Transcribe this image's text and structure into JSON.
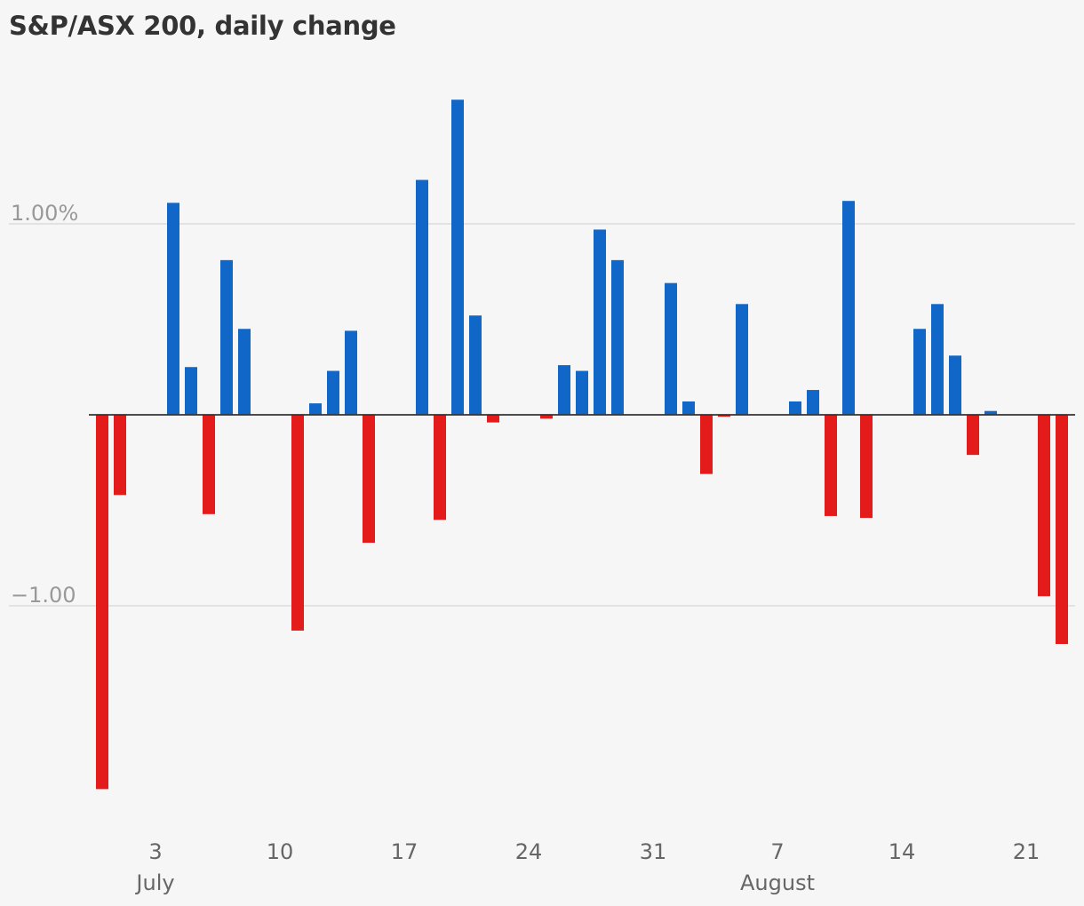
{
  "chart_data": {
    "type": "bar",
    "title": "S&P/ASX 200, daily change",
    "xlabel": "",
    "ylabel": "",
    "unit": "%",
    "ylim": [
      -1.9,
      1.65
    ],
    "y_ticks": [
      {
        "value": 1.0,
        "label": "1.00%"
      },
      {
        "value": -1.0,
        "label": "−1.00"
      }
    ],
    "grid": true,
    "legend": "none",
    "x_start": "2023-06-30",
    "x_ticks": [
      {
        "day": 3,
        "label": "3"
      },
      {
        "day": 10,
        "label": "10"
      },
      {
        "day": 17,
        "label": "17"
      },
      {
        "day": 24,
        "label": "24"
      },
      {
        "day": 31,
        "label": "31"
      },
      {
        "day": 38,
        "label": "7"
      },
      {
        "day": 45,
        "label": "14"
      },
      {
        "day": 52,
        "label": "21"
      }
    ],
    "month_labels": [
      {
        "day": 3,
        "label": "July"
      },
      {
        "day": 38,
        "label": "August"
      }
    ],
    "colors": {
      "up": "#1167c8",
      "down": "#e31b1b",
      "gridline": "#dcdcdc",
      "zero": "#333333"
    },
    "days": [
      0,
      1,
      4,
      5,
      6,
      7,
      8,
      11,
      12,
      13,
      14,
      15,
      18,
      19,
      20,
      21,
      22,
      25,
      26,
      27,
      28,
      29,
      32,
      33,
      34,
      35,
      36,
      39,
      40,
      41,
      42,
      43,
      46,
      47,
      48,
      49,
      50,
      53,
      54
    ],
    "values": [
      -1.96,
      -0.42,
      1.11,
      0.25,
      -0.52,
      0.81,
      0.45,
      -1.13,
      0.06,
      0.23,
      0.44,
      -0.67,
      1.23,
      -0.55,
      1.65,
      0.52,
      -0.04,
      -0.02,
      0.26,
      0.23,
      0.97,
      0.81,
      0.69,
      0.07,
      -0.31,
      -0.01,
      0.58,
      0.07,
      0.13,
      -0.53,
      1.12,
      -0.54,
      0.45,
      0.58,
      0.31,
      -0.21,
      0.02,
      -0.95,
      -1.2
    ]
  }
}
